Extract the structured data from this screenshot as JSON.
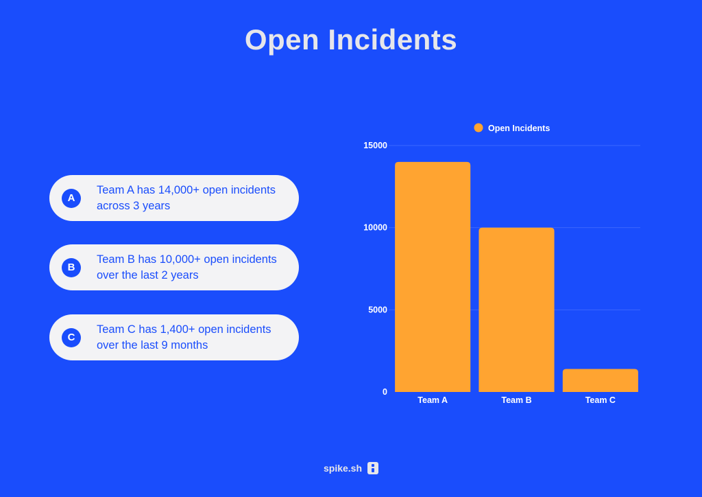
{
  "title": "Open Incidents",
  "notes": [
    {
      "badge": "A",
      "text": "Team A has 14,000+ open incidents across 3 years"
    },
    {
      "badge": "B",
      "text": "Team B has 10,000+ open incidents over the last 2 years"
    },
    {
      "badge": "C",
      "text": "Team C has 1,400+ open incidents over the last 9 months"
    }
  ],
  "footer": {
    "brand": "spike.sh",
    "logo_icon": "spike-logo-icon"
  },
  "colors": {
    "background": "#1a4dfc",
    "bar": "#ffa431",
    "text_light": "#e6e6ea"
  },
  "chart_data": {
    "type": "bar",
    "categories": [
      "Team A",
      "Team B",
      "Team C"
    ],
    "series": [
      {
        "name": "Open Incidents",
        "values": [
          14000,
          10000,
          1400
        ]
      }
    ],
    "yticks": [
      "0",
      "5000",
      "10000",
      "15000"
    ],
    "ylim": [
      0,
      15000
    ],
    "grid": true,
    "legend": "top"
  }
}
